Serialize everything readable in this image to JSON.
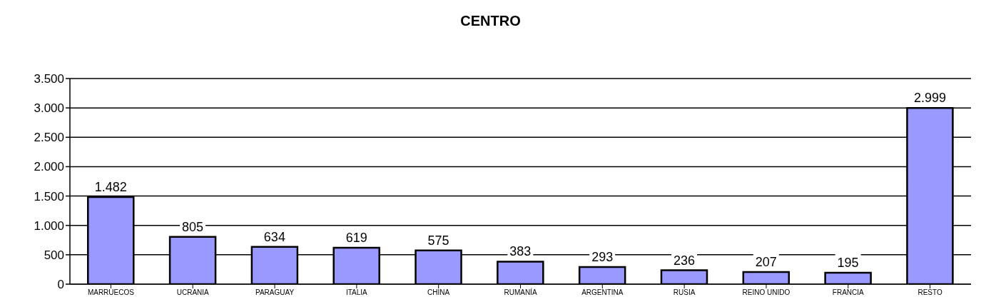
{
  "chart_data": {
    "type": "bar",
    "title": "CENTRO",
    "categories": [
      "MARRUECOS",
      "UCRANIA",
      "PARAGUAY",
      "ITALIA",
      "CHINA",
      "RUMANÍA",
      "ARGENTINA",
      "RUSIA",
      "REINO UNIDO",
      "FRANCIA",
      "RESTO"
    ],
    "values": [
      1482,
      805,
      634,
      619,
      575,
      383,
      293,
      236,
      207,
      195,
      2999
    ],
    "value_labels": [
      "1.482",
      "805",
      "634",
      "619",
      "575",
      "383",
      "293",
      "236",
      "207",
      "195",
      "2.999"
    ],
    "color": "#9999ff",
    "ylim": [
      0,
      3500
    ],
    "yticks": [
      0,
      500,
      {
        "value": 1000,
        "label": "1.000"
      },
      {
        "value": 1500,
        "label": "1.500"
      },
      {
        "value": 2000,
        "label": "2.000"
      },
      {
        "value": 2500,
        "label": "2.500"
      },
      {
        "value": 3000,
        "label": "3.000"
      },
      {
        "value": 3500,
        "label": "3.500"
      }
    ],
    "grid": "y",
    "legend": false
  }
}
